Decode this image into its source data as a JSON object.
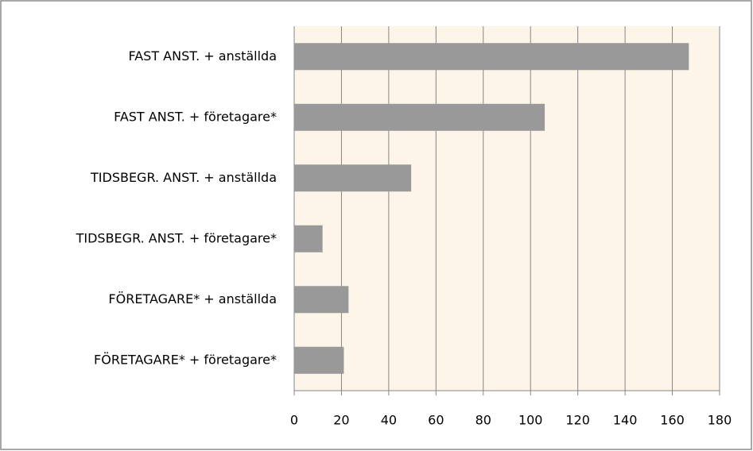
{
  "chart_data": {
    "type": "bar",
    "orientation": "horizontal",
    "categories": [
      "FAST ANST. + anställda",
      "FAST ANST. + företagare*",
      "TIDSBEGR. ANST. + anställda",
      "TIDSBEGR. ANST. + företagare*",
      "FÖRETAGARE* + anställda",
      "FÖRETAGARE* + företagare*"
    ],
    "values": [
      167,
      106,
      49.5,
      12,
      23,
      21
    ],
    "color": "#999999",
    "xlim": [
      0,
      180
    ],
    "xticks": [
      0,
      20,
      40,
      60,
      80,
      100,
      120,
      140,
      160,
      180
    ],
    "grid": true
  }
}
